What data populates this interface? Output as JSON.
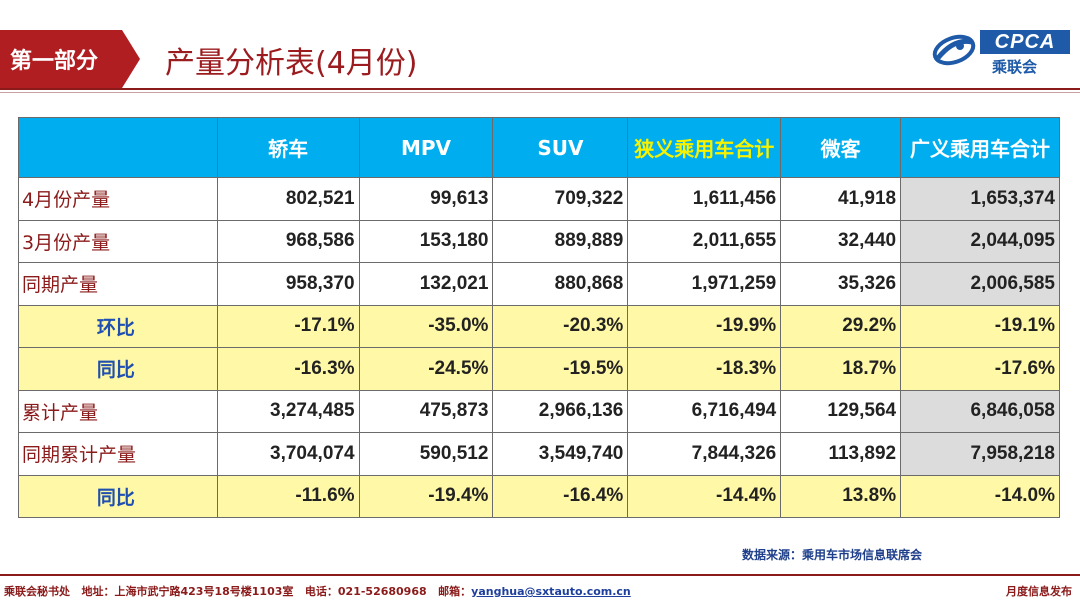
{
  "header": {
    "section_tag": "第一部分",
    "title": "产量分析表(4月份)",
    "logo_text": "CPCA",
    "logo_cn": "乘联会"
  },
  "table": {
    "columns": [
      "轿车",
      "MPV",
      "SUV",
      "狭义乘用车合计",
      "微客",
      "广义乘用车合计"
    ],
    "rows": [
      {
        "label": "4月份产量",
        "values": [
          "802,521",
          "99,613",
          "709,322",
          "1,611,456",
          "41,918",
          "1,653,374"
        ]
      },
      {
        "label": "3月份产量",
        "values": [
          "968,586",
          "153,180",
          "889,889",
          "2,011,655",
          "32,440",
          "2,044,095"
        ]
      },
      {
        "label": "同期产量",
        "values": [
          "958,370",
          "132,021",
          "880,868",
          "1,971,259",
          "35,326",
          "2,006,585"
        ]
      },
      {
        "label": "环比",
        "values": [
          "-17.1%",
          "-35.0%",
          "-20.3%",
          "-19.9%",
          "29.2%",
          "-19.1%"
        ]
      },
      {
        "label": "同比",
        "values": [
          "-16.3%",
          "-24.5%",
          "-19.5%",
          "-18.3%",
          "18.7%",
          "-17.6%"
        ]
      },
      {
        "label": "累计产量",
        "values": [
          "3,274,485",
          "475,873",
          "2,966,136",
          "6,716,494",
          "129,564",
          "6,846,058"
        ]
      },
      {
        "label": "同期累计产量",
        "values": [
          "3,704,074",
          "590,512",
          "3,549,740",
          "7,844,326",
          "113,892",
          "7,958,218"
        ]
      },
      {
        "label": "同比",
        "values": [
          "-11.6%",
          "-19.4%",
          "-16.4%",
          "-14.4%",
          "13.8%",
          "-14.0%"
        ]
      }
    ]
  },
  "source_note": "数据来源：乘用车市场信息联席会",
  "footer": {
    "org": "乘联会秘书处",
    "address": "地址：上海市武宁路423号18号楼1103室",
    "phone": "电话：021-52680968",
    "email_label": "邮箱：",
    "email": "yanghua@sxtauto.com.cn",
    "right": "月度信息发布"
  },
  "colors": {
    "brand_red": "#b01e22",
    "header_blue": "#00aeef",
    "highlight_yellow": "#fff8a6",
    "logo_blue": "#1e5aa8"
  }
}
